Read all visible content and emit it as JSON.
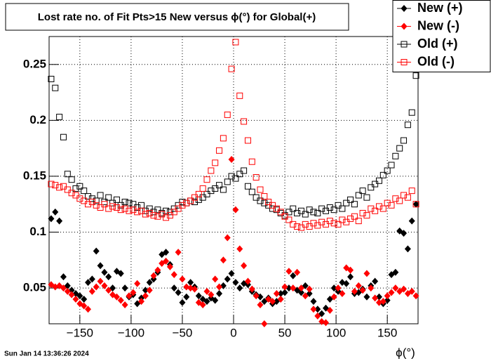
{
  "chart_data": {
    "type": "scatter",
    "title": "Lost rate no. of Fit Pts>15 New versus ϕ(°) for Global(+)",
    "xlabel": "ϕ(°)",
    "timestamp": "Sun Jan 14 13:36:26 2024",
    "xlim": [
      -180,
      180
    ],
    "ylim": [
      0.018,
      0.275
    ],
    "xticks": [
      {
        "value": -150,
        "label": "−150"
      },
      {
        "value": -100,
        "label": "−100"
      },
      {
        "value": -50,
        "label": "−50"
      },
      0,
      50,
      100,
      150
    ],
    "yticks": [
      0.05,
      0.1,
      0.15,
      0.2,
      0.25
    ],
    "grid": true,
    "legend": "top-right",
    "x": [
      -178,
      -174,
      -170,
      -166,
      -162,
      -158,
      -154,
      -150,
      -146,
      -142,
      -138,
      -134,
      -130,
      -126,
      -122,
      -118,
      -114,
      -110,
      -106,
      -102,
      -98,
      -94,
      -90,
      -86,
      -82,
      -78,
      -74,
      -70,
      -66,
      -62,
      -58,
      -54,
      -50,
      -46,
      -42,
      -38,
      -34,
      -30,
      -26,
      -22,
      -18,
      -14,
      -10,
      -6,
      -2,
      2,
      6,
      10,
      14,
      18,
      22,
      26,
      30,
      34,
      38,
      42,
      46,
      50,
      54,
      58,
      62,
      66,
      70,
      74,
      78,
      82,
      86,
      90,
      94,
      98,
      102,
      106,
      110,
      114,
      118,
      122,
      126,
      130,
      134,
      138,
      142,
      146,
      150,
      154,
      158,
      162,
      166,
      170,
      174,
      178
    ],
    "series": [
      {
        "name": "New (+)",
        "color": "#000000",
        "marker": "diamond",
        "values": [
          0.112,
          0.118,
          0.11,
          0.06,
          0.052,
          0.048,
          0.045,
          0.043,
          0.04,
          0.055,
          0.058,
          0.083,
          0.07,
          0.064,
          0.06,
          0.05,
          0.065,
          0.063,
          0.05,
          0.042,
          0.044,
          0.036,
          0.041,
          0.048,
          0.055,
          0.058,
          0.064,
          0.08,
          0.082,
          0.071,
          0.05,
          0.046,
          0.037,
          0.042,
          0.055,
          0.051,
          0.043,
          0.04,
          0.038,
          0.041,
          0.039,
          0.045,
          0.052,
          0.058,
          0.063,
          0.055,
          0.05,
          0.054,
          0.053,
          0.047,
          0.044,
          0.042,
          0.038,
          0.041,
          0.036,
          0.038,
          0.045,
          0.046,
          0.05,
          0.061,
          0.048,
          0.046,
          0.052,
          0.045,
          0.038,
          0.031,
          0.027,
          0.032,
          0.04,
          0.05,
          0.047,
          0.055,
          0.054,
          0.06,
          0.045,
          0.046,
          0.049,
          0.042,
          0.052,
          0.056,
          0.042,
          0.036,
          0.039,
          0.062,
          0.064,
          0.101,
          0.099,
          0.085,
          0.11,
          0.125
        ]
      },
      {
        "name": "New (-)",
        "color": "#ff0000",
        "marker": "diamond",
        "values": [
          0.053,
          0.051,
          0.052,
          0.05,
          0.047,
          0.044,
          0.04,
          0.036,
          0.034,
          0.031,
          0.047,
          0.051,
          0.056,
          0.052,
          0.048,
          0.044,
          0.042,
          0.039,
          0.035,
          0.043,
          0.046,
          0.054,
          0.038,
          0.043,
          0.048,
          0.061,
          0.066,
          0.072,
          0.074,
          0.069,
          0.062,
          0.082,
          0.058,
          0.051,
          0.05,
          0.049,
          0.037,
          0.035,
          0.047,
          0.044,
          0.058,
          0.051,
          0.075,
          0.095,
          0.165,
          0.12,
          0.085,
          0.07,
          0.056,
          0.049,
          0.043,
          0.035,
          0.018,
          0.04,
          0.038,
          0.045,
          0.04,
          0.051,
          0.065,
          0.05,
          0.064,
          0.05,
          0.043,
          0.049,
          0.031,
          0.025,
          0.02,
          0.019,
          0.03,
          0.042,
          0.05,
          0.045,
          0.068,
          0.066,
          0.047,
          0.052,
          0.048,
          0.063,
          0.05,
          0.041,
          0.037,
          0.038,
          0.043,
          0.046,
          0.05,
          0.047,
          0.049,
          0.045,
          0.047,
          0.043
        ]
      },
      {
        "name": "Old (+)",
        "color": "#000000",
        "marker": "square-open",
        "values": [
          0.237,
          0.229,
          0.203,
          0.185,
          0.152,
          0.147,
          0.139,
          0.141,
          0.137,
          0.132,
          0.13,
          0.128,
          0.133,
          0.127,
          0.131,
          0.126,
          0.129,
          0.124,
          0.127,
          0.126,
          0.125,
          0.122,
          0.124,
          0.119,
          0.121,
          0.118,
          0.12,
          0.117,
          0.119,
          0.118,
          0.121,
          0.124,
          0.127,
          0.126,
          0.128,
          0.127,
          0.129,
          0.131,
          0.134,
          0.137,
          0.139,
          0.142,
          0.138,
          0.145,
          0.15,
          0.148,
          0.152,
          0.155,
          0.141,
          0.136,
          0.131,
          0.128,
          0.126,
          0.124,
          0.121,
          0.12,
          0.117,
          0.115,
          0.118,
          0.121,
          0.117,
          0.119,
          0.116,
          0.12,
          0.118,
          0.117,
          0.121,
          0.119,
          0.122,
          0.12,
          0.124,
          0.121,
          0.126,
          0.129,
          0.125,
          0.133,
          0.137,
          0.131,
          0.14,
          0.143,
          0.146,
          0.151,
          0.155,
          0.16,
          0.168,
          0.175,
          0.182,
          0.196,
          0.207,
          0.24
        ]
      },
      {
        "name": "Old (-)",
        "color": "#ff0000",
        "marker": "square-open",
        "values": [
          0.143,
          0.142,
          0.14,
          0.141,
          0.138,
          0.135,
          0.133,
          0.13,
          0.128,
          0.125,
          0.127,
          0.124,
          0.122,
          0.125,
          0.121,
          0.123,
          0.122,
          0.12,
          0.121,
          0.119,
          0.12,
          0.118,
          0.119,
          0.116,
          0.117,
          0.115,
          0.114,
          0.116,
          0.113,
          0.115,
          0.118,
          0.121,
          0.124,
          0.126,
          0.128,
          0.131,
          0.134,
          0.139,
          0.147,
          0.155,
          0.162,
          0.173,
          0.184,
          0.205,
          0.246,
          0.27,
          0.222,
          0.199,
          0.182,
          0.163,
          0.149,
          0.138,
          0.132,
          0.127,
          0.124,
          0.121,
          0.118,
          0.114,
          0.111,
          0.107,
          0.105,
          0.104,
          0.107,
          0.105,
          0.108,
          0.106,
          0.109,
          0.107,
          0.11,
          0.108,
          0.107,
          0.111,
          0.109,
          0.112,
          0.114,
          0.11,
          0.117,
          0.115,
          0.121,
          0.119,
          0.123,
          0.121,
          0.126,
          0.124,
          0.13,
          0.128,
          0.133,
          0.131,
          0.137,
          0.125
        ]
      }
    ]
  }
}
